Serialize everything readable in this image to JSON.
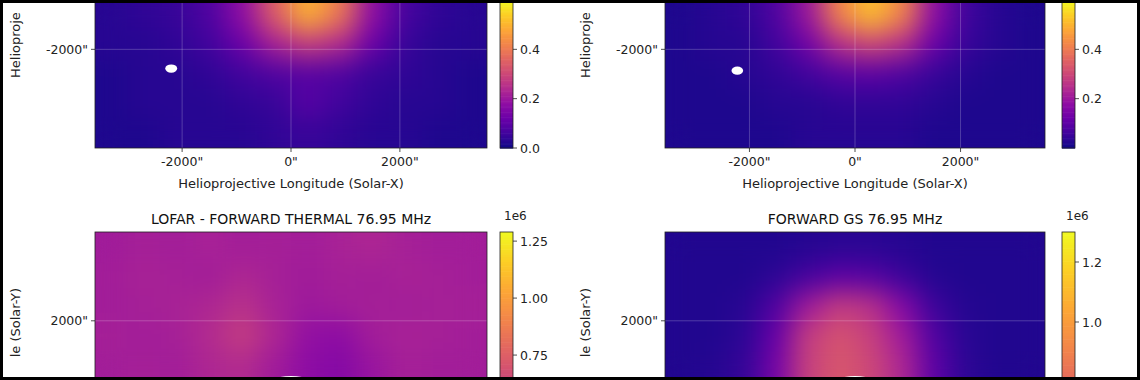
{
  "chart_data": [
    {
      "type": "heatmap",
      "x_label": "Helioprojective Longitude (Solar-X)",
      "y_label": "Helioproje",
      "xlim": [
        -3600,
        3600
      ],
      "ylim": [
        -3800,
        -1100
      ],
      "xticks": [
        {
          "value": -2000,
          "label": "-2000\""
        },
        {
          "value": 0,
          "label": "0\""
        },
        {
          "value": 2000,
          "label": "2000\""
        }
      ],
      "yticks": [
        {
          "value": -2000,
          "label": "-2000\""
        }
      ],
      "grid": true,
      "x": [
        -3300,
        -2700,
        -2100,
        -1500,
        -900,
        -300,
        300,
        900,
        1500,
        2100,
        2700,
        3300
      ],
      "y": [
        -1370,
        -1910,
        -2450,
        -2990,
        -3530
      ],
      "cells": [
        [
          0.03,
          0.04,
          0.05,
          0.08,
          0.18,
          0.35,
          0.5,
          0.4,
          0.18,
          0.07,
          0.04,
          0.03
        ],
        [
          0.03,
          0.03,
          0.04,
          0.06,
          0.12,
          0.22,
          0.28,
          0.24,
          0.12,
          0.05,
          0.03,
          0.03
        ],
        [
          0.02,
          0.03,
          0.03,
          0.04,
          0.06,
          0.08,
          0.09,
          0.08,
          0.05,
          0.04,
          0.03,
          0.02
        ],
        [
          0.02,
          0.03,
          0.03,
          0.03,
          0.04,
          0.05,
          0.09,
          0.06,
          0.04,
          0.03,
          0.03,
          0.02
        ],
        [
          0.02,
          0.02,
          0.03,
          0.03,
          0.03,
          0.04,
          0.05,
          0.04,
          0.03,
          0.03,
          0.02,
          0.02
        ]
      ],
      "color_range": [
        0,
        0.6
      ],
      "color_ticks": [
        {
          "value": 0,
          "label": "0.0"
        },
        0.2,
        0.4
      ],
      "beam": {
        "x": -2200,
        "y": -2350,
        "width": 220,
        "height": 150
      }
    },
    {
      "type": "heatmap",
      "x_label": "Helioprojective Longitude (Solar-X)",
      "y_label": "Helioproje",
      "xlim": [
        -3600,
        3600
      ],
      "ylim": [
        -3800,
        -1100
      ],
      "xticks": [
        {
          "value": -2000,
          "label": "-2000\""
        },
        {
          "value": 0,
          "label": "0\""
        },
        {
          "value": 2000,
          "label": "2000\""
        }
      ],
      "yticks": [
        {
          "value": -2000,
          "label": "-2000\""
        }
      ],
      "grid": true,
      "x": [
        -3300,
        -2700,
        -2100,
        -1500,
        -900,
        -300,
        300,
        900,
        1500,
        2100,
        2700,
        3300
      ],
      "y": [
        -1370,
        -1910,
        -2450,
        -2990,
        -3530
      ],
      "cells": [
        [
          0.02,
          0.03,
          0.04,
          0.08,
          0.2,
          0.42,
          0.52,
          0.42,
          0.18,
          0.06,
          0.03,
          0.02
        ],
        [
          0.02,
          0.03,
          0.03,
          0.06,
          0.13,
          0.25,
          0.3,
          0.25,
          0.12,
          0.05,
          0.03,
          0.02
        ],
        [
          0.02,
          0.02,
          0.03,
          0.04,
          0.06,
          0.09,
          0.1,
          0.08,
          0.05,
          0.03,
          0.02,
          0.02
        ],
        [
          0.02,
          0.02,
          0.02,
          0.03,
          0.03,
          0.04,
          0.04,
          0.04,
          0.03,
          0.02,
          0.02,
          0.02
        ],
        [
          0.02,
          0.02,
          0.02,
          0.02,
          0.03,
          0.03,
          0.03,
          0.03,
          0.02,
          0.02,
          0.02,
          0.02
        ]
      ],
      "color_range": [
        0,
        0.6
      ],
      "color_ticks": [
        0.2,
        0.4
      ],
      "beam": {
        "x": -2230,
        "y": -2390,
        "width": 220,
        "height": 150
      }
    },
    {
      "type": "heatmap",
      "title": "LOFAR - FORWARD THERMAL 76.95 MHz",
      "y_label": "le (Solar-Y)",
      "xlim": [
        -3600,
        3600
      ],
      "ylim": [
        900,
        3650
      ],
      "yticks": [
        {
          "value": 2000,
          "label": "2000\""
        }
      ],
      "grid": true,
      "x": [
        -3300,
        -2700,
        -2100,
        -1500,
        -900,
        -300,
        300,
        900,
        1500,
        2100,
        2700,
        3300
      ],
      "y": [
        3375,
        2825,
        2275,
        1725,
        1175
      ],
      "cells": [
        [
          0.45,
          0.47,
          0.46,
          0.48,
          0.46,
          0.47,
          0.46,
          0.48,
          0.5,
          0.47,
          0.46,
          0.46
        ],
        [
          0.46,
          0.48,
          0.47,
          0.46,
          0.5,
          0.47,
          0.45,
          0.47,
          0.46,
          0.48,
          0.47,
          0.46
        ],
        [
          0.46,
          0.47,
          0.48,
          0.5,
          0.55,
          0.48,
          0.44,
          0.46,
          0.47,
          0.46,
          0.47,
          0.47
        ],
        [
          0.47,
          0.46,
          0.47,
          0.52,
          0.6,
          0.5,
          0.4,
          0.38,
          0.46,
          0.48,
          0.47,
          0.46
        ],
        [
          0.46,
          0.47,
          0.46,
          0.5,
          0.52,
          0.45,
          0.38,
          0.35,
          0.42,
          0.47,
          0.46,
          0.46
        ]
      ],
      "color_range": [
        0,
        1.29
      ],
      "color_ticks": [
        1.25,
        {
          "value": 1,
          "label": "1.00"
        },
        0.75
      ],
      "color_offset_label": "1e6",
      "limb_radius": 960
    },
    {
      "type": "heatmap",
      "title": "FORWARD GS 76.95 MHz",
      "y_label": "le (Solar-Y)",
      "xlim": [
        -3600,
        3600
      ],
      "ylim": [
        900,
        3650
      ],
      "yticks": [
        {
          "value": 2000,
          "label": "2000\""
        }
      ],
      "grid": true,
      "x": [
        -3300,
        -2700,
        -2100,
        -1500,
        -900,
        -300,
        300,
        900,
        1500,
        2100,
        2700,
        3300
      ],
      "y": [
        3375,
        2825,
        2275,
        1725,
        1175
      ],
      "cells": [
        [
          0.05,
          0.05,
          0.05,
          0.05,
          0.06,
          0.07,
          0.07,
          0.06,
          0.05,
          0.05,
          0.05,
          0.05
        ],
        [
          0.05,
          0.05,
          0.05,
          0.08,
          0.15,
          0.22,
          0.2,
          0.12,
          0.06,
          0.05,
          0.05,
          0.05
        ],
        [
          0.05,
          0.05,
          0.07,
          0.18,
          0.45,
          0.6,
          0.55,
          0.35,
          0.12,
          0.06,
          0.05,
          0.05
        ],
        [
          0.05,
          0.05,
          0.08,
          0.25,
          0.6,
          0.7,
          0.62,
          0.45,
          0.18,
          0.07,
          0.05,
          0.05
        ],
        [
          0.05,
          0.06,
          0.1,
          0.3,
          0.62,
          0.72,
          0.65,
          0.5,
          0.22,
          0.08,
          0.05,
          0.05
        ]
      ],
      "color_range": [
        0,
        1.3
      ],
      "color_ticks": [
        1.2,
        {
          "value": 1,
          "label": "1.0"
        }
      ],
      "color_offset_label": "1e6",
      "limb_radius": 960
    }
  ]
}
